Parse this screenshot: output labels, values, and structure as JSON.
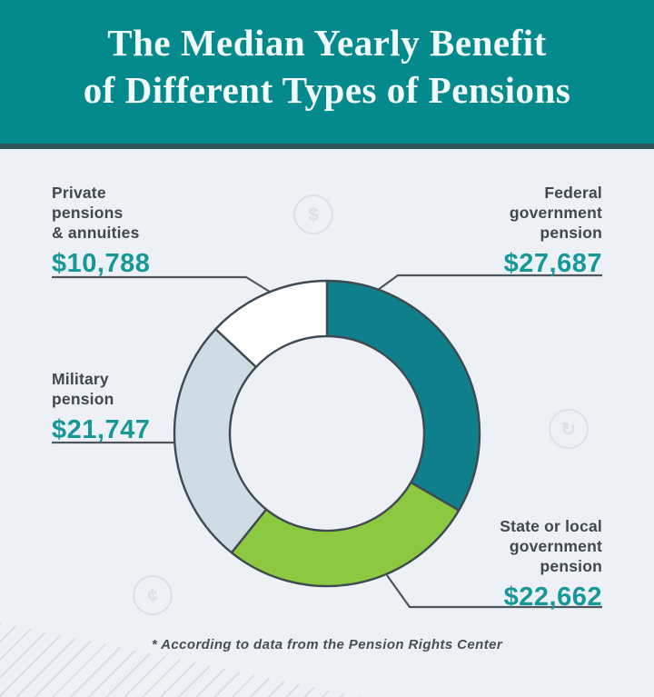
{
  "header": {
    "title_line1": "The Median Yearly Benefit",
    "title_line2": "of Different Types of Pensions"
  },
  "footer": {
    "note": "* According to data from the Pension Rights Center"
  },
  "colors": {
    "header_bg": "#048a8c",
    "header_border": "#2f5358",
    "body_bg": "#edf1f5",
    "accent_teal": "#16989a",
    "label_text": "#3e4852",
    "segment_outline": "#3e4a53",
    "leader_line": "#4d565e",
    "federal": "#0f808b",
    "state_local": "#8cc940",
    "military": "#cedce4",
    "private": "#ffffff",
    "decoration": "#d8e1ea"
  },
  "chart_data": {
    "type": "pie",
    "subtype": "donut",
    "title": "The Median Yearly Benefit of Different Types of Pensions",
    "unit": "USD per year",
    "start_angle_deg": 0,
    "direction": "clockwise",
    "segments": [
      {
        "label": "Federal government pension",
        "value": 27687,
        "display_value": "$27,687",
        "color_key": "federal"
      },
      {
        "label": "State or local government pension",
        "value": 22662,
        "display_value": "$22,662",
        "color_key": "state_local"
      },
      {
        "label": "Military pension",
        "value": 21747,
        "display_value": "$21,747",
        "color_key": "military"
      },
      {
        "label": "Private pensions & annuities",
        "value": 10788,
        "display_value": "$10,788",
        "color_key": "private"
      }
    ],
    "source_note": "* According to data from the Pension Rights Center"
  },
  "callouts": {
    "private": {
      "lines": [
        "Private",
        "pensions",
        "& annuities"
      ],
      "value": "$10,788"
    },
    "federal": {
      "lines": [
        "Federal",
        "government",
        "pension"
      ],
      "value": "$27,687"
    },
    "military": {
      "lines": [
        "Military",
        "pension"
      ],
      "value": "$21,747"
    },
    "state_local": {
      "lines": [
        "State or local",
        "government",
        "pension"
      ],
      "value": "$22,662"
    }
  },
  "decorative_icons": [
    {
      "name": "dollar-coin-icon",
      "glyph": "$"
    },
    {
      "name": "cycle-coin-icon",
      "glyph": "↻"
    },
    {
      "name": "cent-coin-icon",
      "glyph": "¢"
    }
  ]
}
